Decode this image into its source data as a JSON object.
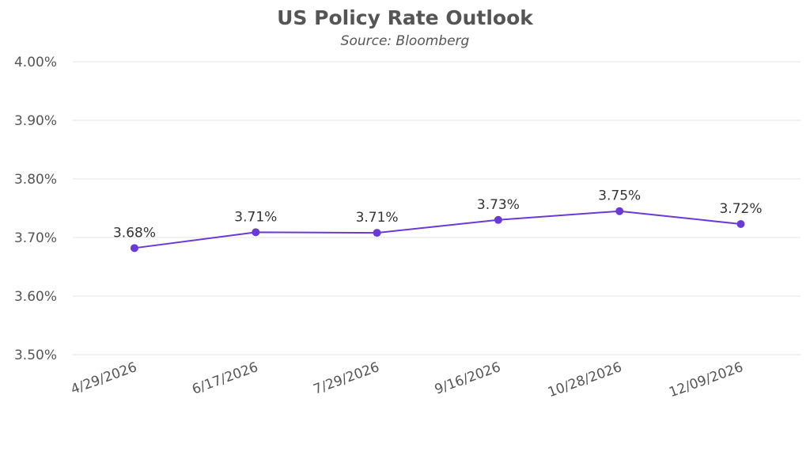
{
  "chart_data": {
    "type": "line",
    "title": "US Policy Rate Outlook",
    "subtitle": "Source: Bloomberg",
    "xlabel": "",
    "ylabel": "",
    "categories": [
      "4/29/2026",
      "6/17/2026",
      "7/29/2026",
      "9/16/2026",
      "10/28/2026",
      "12/09/2026"
    ],
    "values": [
      3.682,
      3.709,
      3.708,
      3.73,
      3.745,
      3.723
    ],
    "data_labels": [
      "3.68%",
      "3.71%",
      "3.71%",
      "3.73%",
      "3.75%",
      "3.72%"
    ],
    "ylim": [
      3.5,
      4.0
    ],
    "yticks": [
      3.5,
      3.6,
      3.7,
      3.8,
      3.9,
      4.0
    ],
    "ytick_labels": [
      "3.50%",
      "3.60%",
      "3.70%",
      "3.80%",
      "3.90%",
      "4.00%"
    ],
    "grid": true,
    "legend": "none",
    "colors": {
      "line": "#6a3ad6",
      "grid": "#e6e6e6",
      "text": "#555555"
    }
  }
}
